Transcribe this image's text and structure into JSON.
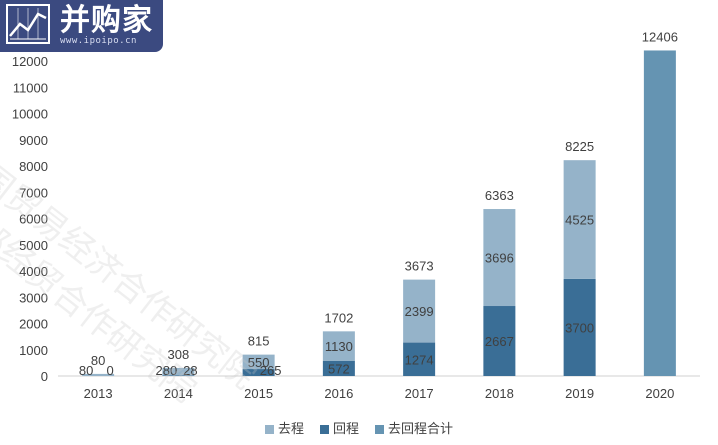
{
  "brand": {
    "logo_text": "并购家",
    "logo_url": "www.ipoipo.cn"
  },
  "watermark": {
    "line1": "国贸易经济合作研究院",
    "line2": "部经贸合作研究院"
  },
  "chart_data": {
    "type": "bar",
    "stacked": true,
    "categories": [
      "2013",
      "2014",
      "2015",
      "2016",
      "2017",
      "2018",
      "2019",
      "2020"
    ],
    "series": [
      {
        "name": "回程",
        "values": [
          0,
          28,
          265,
          572,
          1274,
          2667,
          3700,
          null
        ],
        "color": "#3a6e96"
      },
      {
        "name": "去程",
        "values": [
          80,
          280,
          550,
          1130,
          2399,
          3696,
          4525,
          null
        ],
        "color": "#95b3c9"
      },
      {
        "name": "去回程合计",
        "values": [
          null,
          null,
          null,
          null,
          null,
          null,
          null,
          12406
        ],
        "color": "#6594b2"
      }
    ],
    "totals": [
      80,
      308,
      815,
      1702,
      3673,
      6363,
      8225,
      12406
    ],
    "yticks": [
      0,
      1000,
      2000,
      3000,
      4000,
      5000,
      6000,
      7000,
      8000,
      9000,
      10000,
      11000,
      12000
    ],
    "ylim": [
      0,
      12500
    ],
    "grid": false,
    "legend_position": "bottom"
  }
}
